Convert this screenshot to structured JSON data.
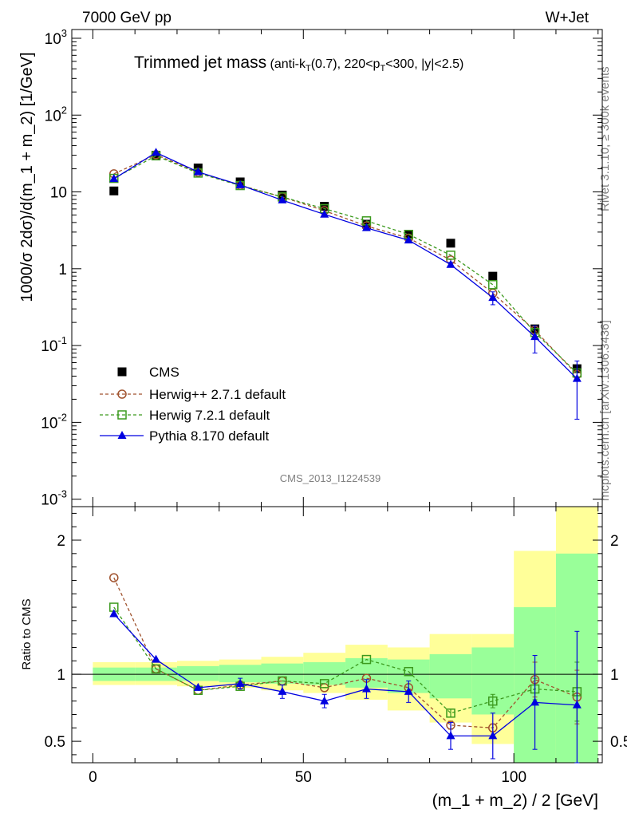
{
  "header": {
    "energy_label": "7000 GeV pp",
    "process_label": "W+Jet"
  },
  "side_labels": {
    "rivet": "Rivet 3.1.10, ≥ 300k events",
    "mcplots": "mcplots.cern.ch [arXiv:1306.3436]"
  },
  "analysis_id": "CMS_2013_I1224539",
  "colors": {
    "cms": "#000000",
    "herwigpp": "#a0522d",
    "herwig7": "#3c9a1e",
    "pythia": "#0000e0",
    "band_yellow": "#ffff99",
    "band_green": "#99ff99"
  },
  "chart_data": [
    {
      "type": "scatter",
      "panel": "main",
      "title": "Trimmed jet mass",
      "subtitle": "(anti-k_T(0.7), 220<p_T<300, |y|<2.5)",
      "xlabel": "",
      "ylabel": "1000/σ 2dσ)/d(m_1 + m_2) [1/GeV]",
      "yscale": "log",
      "xlim": [
        -5,
        121
      ],
      "ylim": [
        0.0008,
        1300
      ],
      "yticks": [
        0.001,
        0.01,
        0.1,
        1,
        10,
        100,
        1000
      ],
      "ytick_labels": [
        "10^-3",
        "10^-2",
        "10^-1",
        "1",
        "10",
        "10^2",
        "10^3"
      ],
      "legend_position": "bottom-left",
      "x": [
        5,
        15,
        25,
        35,
        45,
        55,
        65,
        75,
        85,
        95,
        105,
        115
      ],
      "series": [
        {
          "name": "CMS",
          "marker": "square-filled",
          "color": "#000000",
          "values": [
            10.3,
            30,
            20.5,
            13.5,
            9.1,
            6.5,
            3.8,
            2.75,
            2.15,
            0.8,
            0.165,
            0.05
          ]
        },
        {
          "name": "Herwig++ 2.7.1 default",
          "marker": "circle-open",
          "line": "dashed",
          "color": "#a0522d",
          "values": [
            17.2,
            30.5,
            18,
            12.2,
            8.6,
            5.7,
            3.6,
            2.5,
            1.3,
            0.48,
            0.158,
            0.042
          ]
        },
        {
          "name": "Herwig 7.2.1 default",
          "marker": "square-open",
          "line": "dashed",
          "color": "#3c9a1e",
          "values": [
            15,
            29.5,
            17.6,
            12.1,
            8.6,
            6.05,
            4.2,
            2.8,
            1.5,
            0.62,
            0.148,
            0.044
          ]
        },
        {
          "name": "Pythia 8.170 default",
          "marker": "triangle-filled",
          "line": "solid",
          "color": "#0000e0",
          "values": [
            14.8,
            32.5,
            18.2,
            12.3,
            7.8,
            5.1,
            3.4,
            2.35,
            1.13,
            0.42,
            0.13,
            0.037
          ],
          "errors_low": [
            0,
            0,
            0,
            0,
            0,
            0,
            0,
            0,
            0.08,
            0.08,
            0.05,
            0.026
          ],
          "errors_high": [
            0,
            0,
            0,
            0,
            0,
            0,
            0,
            0,
            0.08,
            0.08,
            0.05,
            0.026
          ]
        }
      ]
    },
    {
      "type": "line",
      "panel": "ratio",
      "xlabel": "(m_1 + m_2) / 2 [GeV]",
      "ylabel": "Ratio to CMS",
      "xlim": [
        -5,
        121
      ],
      "ylim": [
        0.34,
        2.25
      ],
      "xticks": [
        0,
        50,
        100
      ],
      "yticks": [
        0.5,
        1,
        2
      ],
      "reference_line": 1,
      "bands": {
        "x_edges": [
          0,
          10,
          20,
          30,
          40,
          50,
          60,
          70,
          80,
          90,
          100,
          110,
          120
        ],
        "yellow_low": [
          0.92,
          0.92,
          0.91,
          0.9,
          0.88,
          0.86,
          0.81,
          0.73,
          0.64,
          0.48,
          0.34,
          0.34
        ],
        "yellow_high": [
          1.09,
          1.09,
          1.1,
          1.11,
          1.13,
          1.16,
          1.22,
          1.2,
          1.3,
          1.3,
          1.92,
          2.27
        ],
        "green_low": [
          0.95,
          0.95,
          0.95,
          0.94,
          0.93,
          0.92,
          0.9,
          0.86,
          0.82,
          0.7,
          0.34,
          0.34
        ],
        "green_high": [
          1.05,
          1.05,
          1.06,
          1.07,
          1.08,
          1.09,
          1.12,
          1.11,
          1.15,
          1.2,
          1.5,
          1.9
        ]
      },
      "x": [
        5,
        15,
        25,
        35,
        45,
        55,
        65,
        75,
        85,
        95,
        105,
        115
      ],
      "series": [
        {
          "name": "Herwig++ 2.7.1 default",
          "color": "#a0522d",
          "marker": "circle-open",
          "line": "dashed",
          "values": [
            1.72,
            1.04,
            0.88,
            0.92,
            0.95,
            0.9,
            0.97,
            0.9,
            0.62,
            0.6,
            0.96,
            0.83
          ],
          "errors": [
            0,
            0,
            0,
            0,
            0,
            0,
            0,
            0,
            0.03,
            0.03,
            0.13,
            0.2
          ]
        },
        {
          "name": "Herwig 7.2.1 default",
          "color": "#3c9a1e",
          "marker": "square-open",
          "line": "dashed",
          "values": [
            1.5,
            1.04,
            0.88,
            0.91,
            0.95,
            0.93,
            1.11,
            1.02,
            0.71,
            0.8,
            0.89,
            0.87
          ],
          "errors": [
            0,
            0,
            0,
            0,
            0,
            0,
            0,
            0,
            0.03,
            0.05,
            0.08,
            0.22
          ]
        },
        {
          "name": "Pythia 8.170 default",
          "color": "#0000e0",
          "marker": "triangle-filled",
          "line": "solid",
          "values": [
            1.45,
            1.11,
            0.9,
            0.93,
            0.87,
            0.8,
            0.89,
            0.87,
            0.54,
            0.54,
            0.79,
            0.77
          ],
          "errors": [
            0,
            0,
            0,
            0.04,
            0.05,
            0.05,
            0.07,
            0.08,
            0.1,
            0.17,
            0.35,
            0.55
          ]
        }
      ]
    }
  ]
}
